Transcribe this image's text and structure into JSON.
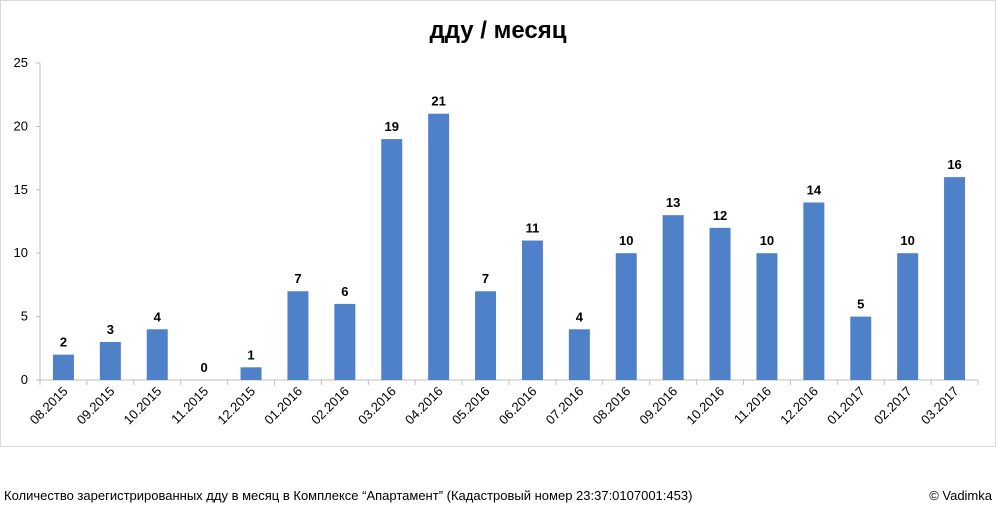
{
  "chart_data": {
    "type": "bar",
    "title": "дду / месяц",
    "xlabel": "",
    "ylabel": "",
    "ylim": [
      0,
      25
    ],
    "yticks": [
      0,
      5,
      10,
      15,
      20,
      25
    ],
    "grid": false,
    "data_labels": true,
    "bar_color": "#4f81c8",
    "categories": [
      "08.2015",
      "09.2015",
      "10.2015",
      "11.2015",
      "12.2015",
      "01.2016",
      "02.2016",
      "03.2016",
      "04.2016",
      "05.2016",
      "06.2016",
      "07.2016",
      "08.2016",
      "09.2016",
      "10.2016",
      "11.2016",
      "12.2016",
      "01.2017",
      "02.2017",
      "03.2017"
    ],
    "values": [
      2,
      3,
      4,
      0,
      1,
      7,
      6,
      19,
      21,
      7,
      11,
      4,
      10,
      13,
      12,
      10,
      14,
      5,
      10,
      16
    ]
  },
  "footer": {
    "caption": "Количество зарегистрированных дду в месяц в Комплексе “Апартамент”  (Кадастровый номер 23:37:0107001:453)",
    "copyright": "© Vadimka"
  }
}
